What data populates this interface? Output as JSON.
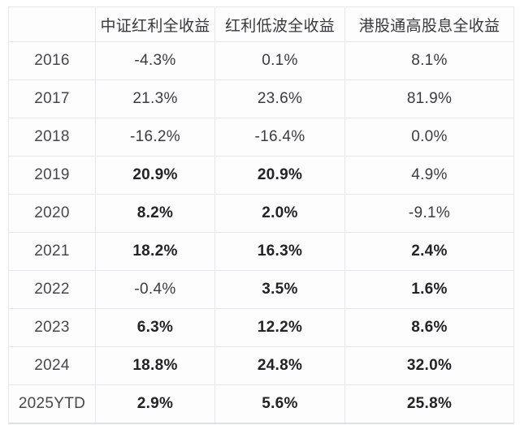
{
  "table": {
    "columns": [
      "",
      "中证红利全收益",
      "红利低波全收益",
      "港股通高股息全收益"
    ],
    "rows": [
      {
        "year": "2016",
        "values": [
          "-4.3%",
          "0.1%",
          "8.1%"
        ],
        "bold": [
          false,
          false,
          false
        ]
      },
      {
        "year": "2017",
        "values": [
          "21.3%",
          "23.6%",
          "81.9%"
        ],
        "bold": [
          false,
          false,
          false
        ]
      },
      {
        "year": "2018",
        "values": [
          "-16.2%",
          "-16.4%",
          "0.0%"
        ],
        "bold": [
          false,
          false,
          false
        ]
      },
      {
        "year": "2019",
        "values": [
          "20.9%",
          "20.9%",
          "4.9%"
        ],
        "bold": [
          true,
          true,
          false
        ]
      },
      {
        "year": "2020",
        "values": [
          "8.2%",
          "2.0%",
          "-9.1%"
        ],
        "bold": [
          true,
          true,
          false
        ]
      },
      {
        "year": "2021",
        "values": [
          "18.2%",
          "16.3%",
          "2.4%"
        ],
        "bold": [
          true,
          true,
          true
        ]
      },
      {
        "year": "2022",
        "values": [
          "-0.4%",
          "3.5%",
          "1.6%"
        ],
        "bold": [
          false,
          true,
          true
        ]
      },
      {
        "year": "2023",
        "values": [
          "6.3%",
          "12.2%",
          "8.6%"
        ],
        "bold": [
          true,
          true,
          true
        ]
      },
      {
        "year": "2024",
        "values": [
          "18.8%",
          "24.8%",
          "32.0%"
        ],
        "bold": [
          true,
          true,
          true
        ]
      },
      {
        "year": "2025YTD",
        "values": [
          "2.9%",
          "5.6%",
          "25.8%"
        ],
        "bold": [
          true,
          true,
          true
        ]
      }
    ]
  },
  "style": {
    "border_color": "#e7e8ec",
    "cell_background": "#fdfdfe",
    "text_color": "#3b3b40",
    "bold_text_color": "#232327"
  },
  "chart_data": {
    "type": "table",
    "title": "",
    "categories": [
      "2016",
      "2017",
      "2018",
      "2019",
      "2020",
      "2021",
      "2022",
      "2023",
      "2024",
      "2025YTD"
    ],
    "series": [
      {
        "name": "中证红利全收益",
        "values": [
          -4.3,
          21.3,
          -16.2,
          20.9,
          8.2,
          18.2,
          -0.4,
          6.3,
          18.8,
          2.9
        ]
      },
      {
        "name": "红利低波全收益",
        "values": [
          0.1,
          23.6,
          -16.4,
          20.9,
          2.0,
          16.3,
          3.5,
          12.2,
          24.8,
          5.6
        ]
      },
      {
        "name": "港股通高股息全收益",
        "values": [
          8.1,
          81.9,
          0.0,
          4.9,
          -9.1,
          2.4,
          1.6,
          8.6,
          32.0,
          25.8
        ]
      }
    ],
    "unit": "%"
  }
}
